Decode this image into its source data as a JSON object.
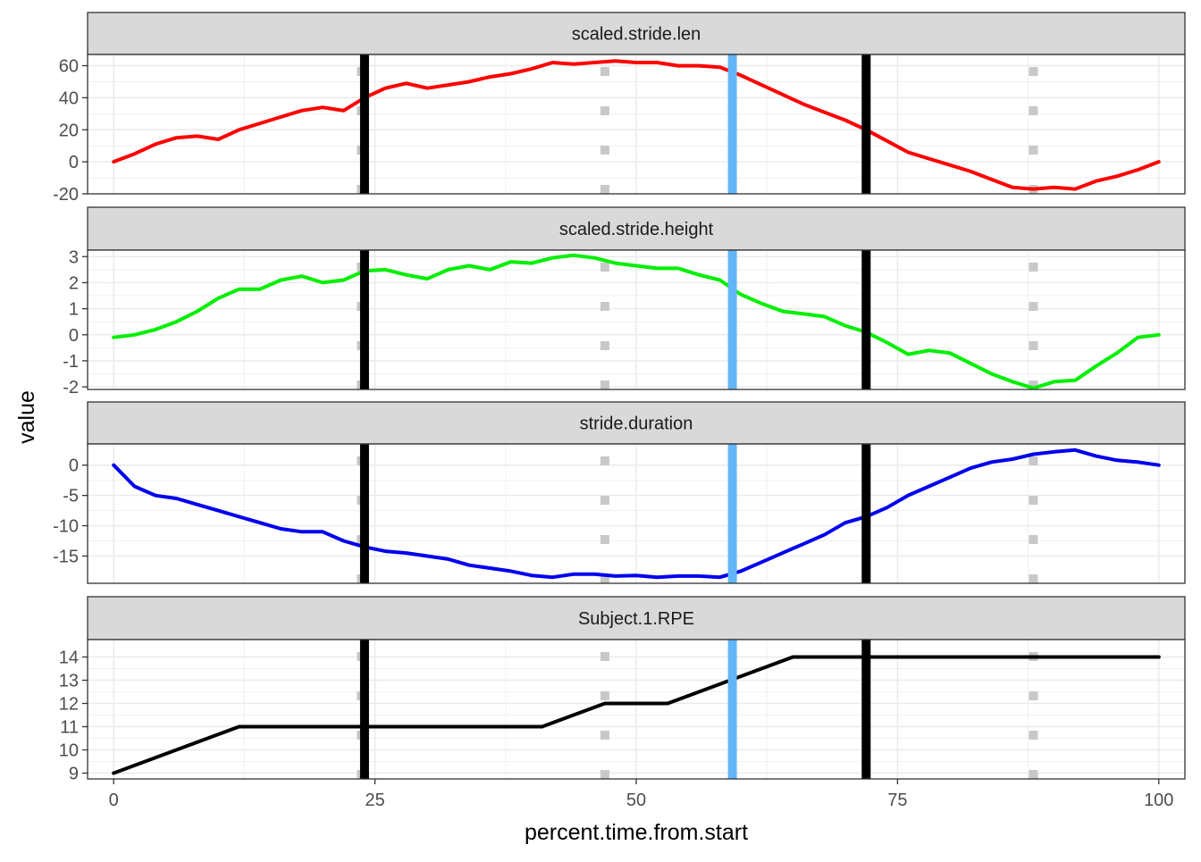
{
  "chart_data": {
    "type": "line",
    "layout": "faceted-vertical",
    "xlabel": "percent.time.from.start",
    "ylabel": "value",
    "xlim": [
      -2.5,
      102.5
    ],
    "x_ticks": [
      0,
      25,
      50,
      75,
      100
    ],
    "grid": true,
    "vertical_lines": [
      {
        "x": 23.7,
        "style": "dotted",
        "color": "#C8C8C8"
      },
      {
        "x": 47.0,
        "style": "dotted",
        "color": "#C8C8C8"
      },
      {
        "x": 88.0,
        "style": "dotted",
        "color": "#C8C8C8"
      },
      {
        "x": 24.0,
        "style": "solid",
        "color": "#000000"
      },
      {
        "x": 72.0,
        "style": "solid",
        "color": "#000000"
      },
      {
        "x": 59.2,
        "style": "solid",
        "color": "#62B6F8"
      }
    ],
    "facets": [
      {
        "title": "scaled.stride.len",
        "color": "#FF0000",
        "ylim": [
          -20,
          67
        ],
        "y_ticks": [
          -20,
          0,
          20,
          40,
          60
        ],
        "x": [
          0,
          2,
          4,
          6,
          8,
          10,
          12,
          14,
          16,
          18,
          20,
          22,
          24,
          26,
          28,
          30,
          32,
          34,
          36,
          38,
          40,
          42,
          44,
          46,
          48,
          50,
          52,
          54,
          56,
          58,
          60,
          62,
          64,
          66,
          68,
          70,
          72,
          74,
          76,
          78,
          80,
          82,
          84,
          86,
          88,
          90,
          92,
          94,
          96,
          98,
          100
        ],
        "y": [
          0,
          5,
          11,
          15,
          16,
          14,
          20,
          24,
          28,
          32,
          34,
          32,
          40,
          46,
          49,
          46,
          48,
          50,
          53,
          55,
          58,
          62,
          61,
          62,
          63,
          62,
          62,
          60,
          60,
          59,
          54,
          48,
          42,
          36,
          31,
          26,
          20,
          13,
          6,
          2,
          -2,
          -6,
          -11,
          -16,
          -17,
          -16,
          -17,
          -12,
          -9,
          -5,
          0
        ]
      },
      {
        "title": "scaled.stride.height",
        "color": "#00EE00",
        "ylim": [
          -2.1,
          3.25
        ],
        "y_ticks": [
          -2,
          -1,
          0,
          1,
          2,
          3
        ],
        "x": [
          0,
          2,
          4,
          6,
          8,
          10,
          12,
          14,
          16,
          18,
          20,
          22,
          24,
          26,
          28,
          30,
          32,
          34,
          36,
          38,
          40,
          42,
          44,
          46,
          48,
          50,
          52,
          54,
          56,
          58,
          60,
          62,
          64,
          66,
          68,
          70,
          72,
          74,
          76,
          78,
          80,
          82,
          84,
          86,
          88,
          90,
          92,
          94,
          96,
          98,
          100
        ],
        "y": [
          -0.1,
          0.0,
          0.2,
          0.5,
          0.9,
          1.4,
          1.75,
          1.75,
          2.1,
          2.25,
          2.0,
          2.1,
          2.45,
          2.5,
          2.3,
          2.15,
          2.5,
          2.65,
          2.5,
          2.8,
          2.75,
          2.95,
          3.05,
          2.95,
          2.75,
          2.65,
          2.55,
          2.55,
          2.3,
          2.1,
          1.55,
          1.2,
          0.9,
          0.8,
          0.7,
          0.35,
          0.1,
          -0.3,
          -0.75,
          -0.6,
          -0.7,
          -1.1,
          -1.5,
          -1.8,
          -2.05,
          -1.8,
          -1.75,
          -1.2,
          -0.7,
          -0.1,
          0.0
        ]
      },
      {
        "title": "stride.duration",
        "color": "#0000EE",
        "ylim": [
          -19.5,
          3.5
        ],
        "y_ticks": [
          -15,
          -10,
          -5,
          0
        ],
        "x": [
          0,
          2,
          4,
          6,
          8,
          10,
          12,
          14,
          16,
          18,
          20,
          22,
          24,
          26,
          28,
          30,
          32,
          34,
          36,
          38,
          40,
          42,
          44,
          46,
          48,
          50,
          52,
          54,
          56,
          58,
          60,
          62,
          64,
          66,
          68,
          70,
          72,
          74,
          76,
          78,
          80,
          82,
          84,
          86,
          88,
          90,
          92,
          94,
          96,
          98,
          100
        ],
        "y": [
          0,
          -3.5,
          -5.0,
          -5.5,
          -6.5,
          -7.5,
          -8.5,
          -9.5,
          -10.5,
          -11.0,
          -11.0,
          -12.5,
          -13.5,
          -14.2,
          -14.5,
          -15.0,
          -15.5,
          -16.5,
          -17.0,
          -17.5,
          -18.2,
          -18.5,
          -18.0,
          -18.0,
          -18.3,
          -18.2,
          -18.5,
          -18.3,
          -18.3,
          -18.5,
          -17.5,
          -16.0,
          -14.5,
          -13.0,
          -11.5,
          -9.5,
          -8.5,
          -7.0,
          -5.0,
          -3.5,
          -2.0,
          -0.5,
          0.5,
          1.0,
          1.8,
          2.2,
          2.5,
          1.5,
          0.8,
          0.5,
          0.0
        ]
      },
      {
        "title": "Subject.1.RPE",
        "color": "#000000",
        "ylim": [
          8.75,
          14.75
        ],
        "y_ticks": [
          9,
          10,
          11,
          12,
          13,
          14
        ],
        "x": [
          0,
          12,
          41,
          47,
          53,
          65,
          100
        ],
        "y": [
          9,
          11,
          11,
          12,
          12,
          14,
          14
        ]
      }
    ]
  }
}
